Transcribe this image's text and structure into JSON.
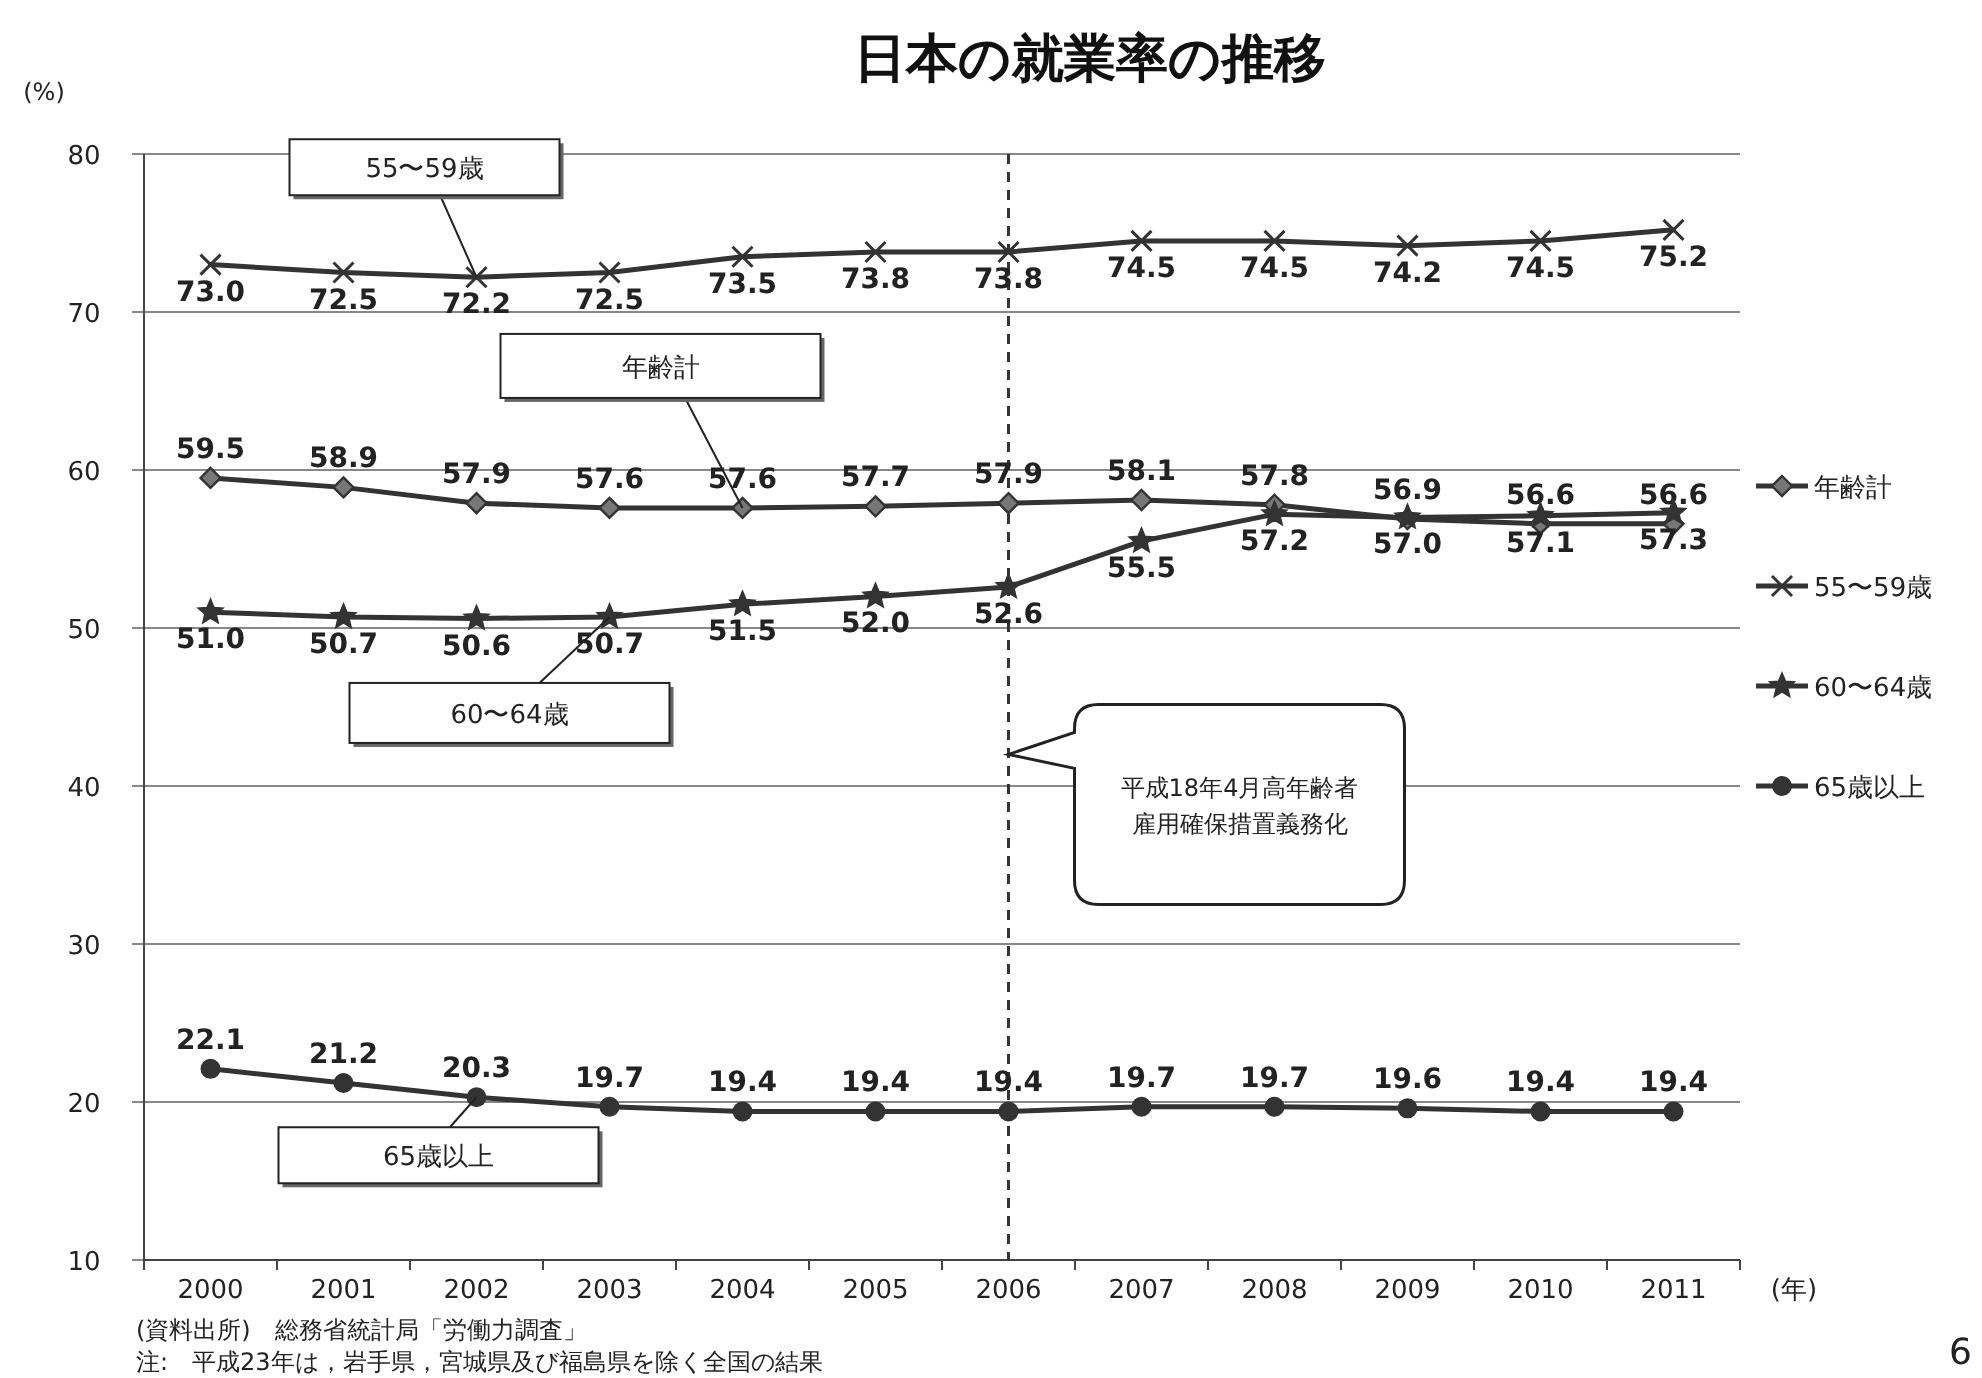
{
  "chart_data": {
    "type": "line",
    "title": "日本の就業率の推移",
    "ylabel": "(%)",
    "xlabel": "(年)",
    "categories": [
      "2000",
      "2001",
      "2002",
      "2003",
      "2004",
      "2005",
      "2006",
      "2007",
      "2008",
      "2009",
      "2010",
      "2011"
    ],
    "series": [
      {
        "name": "年齢計",
        "color": "#333333",
        "marker": "diamond",
        "values": [
          59.5,
          58.9,
          57.9,
          57.6,
          57.6,
          57.7,
          57.9,
          58.1,
          57.8,
          56.9,
          56.6,
          56.6
        ],
        "value_labels": [
          "59.5",
          "58.9",
          "57.9",
          "57.6",
          "57.6",
          "57.7",
          "57.9",
          "58.1",
          "57.8",
          "56.9",
          "56.6",
          "56.6"
        ]
      },
      {
        "name": "55〜59歳",
        "color": "#333333",
        "marker": "cross",
        "values": [
          73.0,
          72.5,
          72.2,
          72.5,
          73.5,
          73.8,
          73.8,
          74.5,
          74.5,
          74.2,
          74.5,
          75.2
        ],
        "value_labels": [
          "73.0",
          "72.5",
          "72.2",
          "72.5",
          "73.5",
          "73.8",
          "73.8",
          "74.5",
          "74.5",
          "74.2",
          "74.5",
          "75.2"
        ]
      },
      {
        "name": "60〜64歳",
        "color": "#333333",
        "marker": "star",
        "values": [
          51.0,
          50.7,
          50.6,
          50.7,
          51.5,
          52.0,
          52.6,
          55.5,
          57.2,
          57.0,
          57.1,
          57.3
        ],
        "value_labels": [
          "51.0",
          "50.7",
          "50.6",
          "50.7",
          "51.5",
          "52.0",
          "52.6",
          "55.5",
          "57.2",
          "57.0",
          "57.1",
          "57.3"
        ]
      },
      {
        "name": "65歳以上",
        "color": "#333333",
        "marker": "circle",
        "values": [
          22.1,
          21.2,
          20.3,
          19.7,
          19.4,
          19.4,
          19.4,
          19.7,
          19.7,
          19.6,
          19.4,
          19.4
        ],
        "value_labels": [
          "22.1",
          "21.2",
          "20.3",
          "19.7",
          "19.4",
          "19.4",
          "19.4",
          "19.7",
          "19.7",
          "19.6",
          "19.4",
          "19.4"
        ]
      }
    ],
    "ylim": [
      10,
      80
    ],
    "yticks": [
      10,
      20,
      30,
      40,
      50,
      60,
      70,
      80
    ],
    "grid": "y",
    "legend": "right",
    "line_style": "solid",
    "ref_lines": [
      {
        "axis": "x",
        "value": "2006",
        "line_style": "dashed",
        "color": "#333333"
      }
    ],
    "annotations": [
      {
        "text": "55〜59歳",
        "x": "2002",
        "y": 72.2
      },
      {
        "text": "年齢計",
        "x": "2004",
        "y": 57.6
      },
      {
        "text": "60〜64歳",
        "x": "2003",
        "y": 50.7
      },
      {
        "text": "65歳以上",
        "x": "2002",
        "y": 20.3
      },
      "平成18年4月高年齢者雇用確保措置義務化",
      "(資料出所)　総務省統計局「労働力調査」",
      "注:　平成23年は，岩手県，宮城県及び福島県を除く全国の結果",
      "6"
    ]
  }
}
